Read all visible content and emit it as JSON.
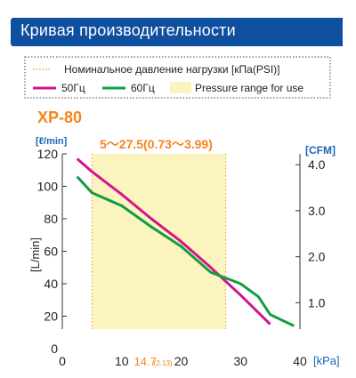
{
  "header": {
    "title": "Кривая производительности"
  },
  "colors": {
    "header_bg": "#0f4fa0",
    "series_50": "#d4148a",
    "series_60": "#119d45",
    "pressure_band": "#fbf4bf",
    "accent_orange": "#f5851f",
    "cfm_blue": "#1f63b5"
  },
  "chart_data": {
    "type": "line",
    "title": "XP-80",
    "annotation": "5～27.5(0.73～3.99)",
    "xlabel": "[kPa]",
    "ylabel_left": "[L/min]",
    "ylabel_left_unit": "[ℓ/min]",
    "ylabel_right": "[CFM]",
    "xlim": [
      0,
      40
    ],
    "ylim": [
      0,
      120
    ],
    "x_ticks": [
      "0",
      "10",
      "20",
      "30",
      "40"
    ],
    "x_marker": {
      "value": 14.7,
      "label": "14.7",
      "sub_label": "(2.13)"
    },
    "y_ticks": [
      "0",
      "20",
      "40",
      "60",
      "80",
      "100",
      "120"
    ],
    "y2_ticks": [
      "1.0",
      "2.0",
      "3.0",
      "4.0"
    ],
    "y2_tick_positions_lmin": [
      28.3,
      56.6,
      85.0,
      113.3
    ],
    "pressure_range": [
      5,
      27.5
    ],
    "grid": false,
    "legend": {
      "placement": "top",
      "rated_pressure_label": "Номинальное давление нагрузки [кПа(PSI)]",
      "pressure_range_label": "Pressure range for use"
    },
    "series": [
      {
        "name": "50Гц",
        "x": [
          2.5,
          5,
          10,
          15,
          20,
          25,
          30,
          35
        ],
        "y": [
          117,
          109,
          95,
          80,
          66,
          50,
          33,
          15
        ]
      },
      {
        "name": "60Гц",
        "x": [
          2.5,
          5,
          10,
          15,
          20,
          25,
          30,
          33,
          35,
          39
        ],
        "y": [
          106,
          96,
          88,
          75,
          63,
          47,
          40,
          32,
          21,
          14
        ]
      }
    ]
  }
}
